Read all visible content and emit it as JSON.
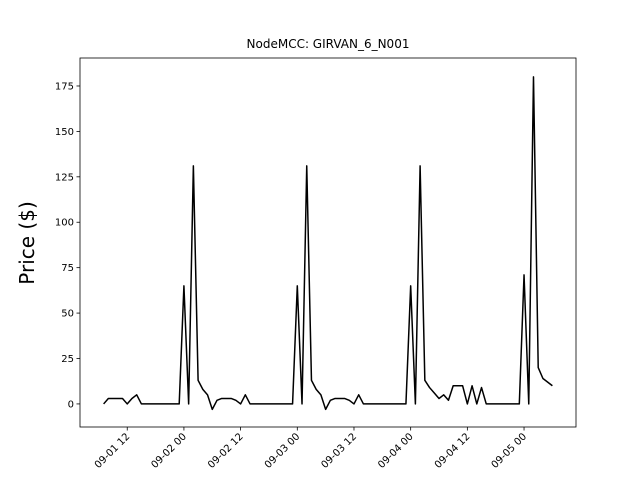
{
  "chart_data": {
    "type": "line",
    "title": "NodeMCC: GIRVAN_6_N001",
    "y_label": "Price ($)",
    "x": [
      "09-01 07",
      "09-01 08",
      "09-01 09",
      "09-01 10",
      "09-01 11",
      "09-01 12",
      "09-01 13",
      "09-01 14",
      "09-01 15",
      "09-01 16",
      "09-01 17",
      "09-01 18",
      "09-01 19",
      "09-01 20",
      "09-01 21",
      "09-01 22",
      "09-01 23",
      "09-02 00",
      "09-02 01",
      "09-02 02",
      "09-02 03",
      "09-02 04",
      "09-02 05",
      "09-02 06",
      "09-02 07",
      "09-02 08",
      "09-02 09",
      "09-02 10",
      "09-02 11",
      "09-02 12",
      "09-02 13",
      "09-02 14",
      "09-02 15",
      "09-02 16",
      "09-02 17",
      "09-02 18",
      "09-02 19",
      "09-02 20",
      "09-02 21",
      "09-02 22",
      "09-02 23",
      "09-03 00",
      "09-03 01",
      "09-03 02",
      "09-03 03",
      "09-03 04",
      "09-03 05",
      "09-03 06",
      "09-03 07",
      "09-03 08",
      "09-03 09",
      "09-03 10",
      "09-03 11",
      "09-03 12",
      "09-03 13",
      "09-03 14",
      "09-03 15",
      "09-03 16",
      "09-03 17",
      "09-03 18",
      "09-03 19",
      "09-03 20",
      "09-03 21",
      "09-03 22",
      "09-03 23",
      "09-04 00",
      "09-04 01",
      "09-04 02",
      "09-04 03",
      "09-04 04",
      "09-04 05",
      "09-04 06",
      "09-04 07",
      "09-04 08",
      "09-04 09",
      "09-04 10",
      "09-04 11",
      "09-04 12",
      "09-04 13",
      "09-04 14",
      "09-04 15",
      "09-04 16",
      "09-04 17",
      "09-04 18",
      "09-04 19",
      "09-04 20",
      "09-04 21",
      "09-04 22",
      "09-04 23",
      "09-05 00",
      "09-05 01",
      "09-05 02",
      "09-05 03",
      "09-05 04",
      "09-05 05",
      "09-05 06"
    ],
    "series": [
      {
        "color": "#000000",
        "values": [
          0,
          3,
          3,
          3,
          3,
          0,
          3,
          5,
          0,
          0,
          0,
          0,
          0,
          0,
          0,
          0,
          0,
          65,
          0,
          131,
          13,
          8,
          5,
          -3,
          2,
          3,
          3,
          3,
          2,
          0,
          5,
          0,
          0,
          0,
          0,
          0,
          0,
          0,
          0,
          0,
          0,
          65,
          0,
          131,
          13,
          8,
          5,
          -3,
          2,
          3,
          3,
          3,
          2,
          0,
          5,
          0,
          0,
          0,
          0,
          0,
          0,
          0,
          0,
          0,
          0,
          65,
          0,
          131,
          13,
          9,
          6,
          3,
          5,
          2,
          10,
          10,
          10,
          0,
          10,
          0,
          9,
          0,
          0,
          0,
          0,
          0,
          0,
          0,
          0,
          71,
          0,
          180,
          20,
          14,
          12,
          10
        ]
      }
    ],
    "xlim": [
      "09-01 02",
      "09-05 11"
    ],
    "xticks": [
      "09-01 12",
      "09-02 00",
      "09-02 12",
      "09-03 00",
      "09-03 12",
      "09-04 00",
      "09-04 12",
      "09-05 00"
    ],
    "ylim": [
      -12.7,
      190.4
    ],
    "yticks": [
      0,
      25,
      50,
      75,
      100,
      125,
      150,
      175
    ]
  }
}
